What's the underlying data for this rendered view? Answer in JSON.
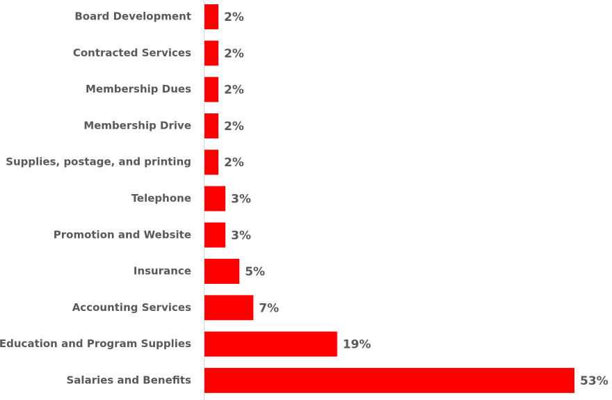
{
  "chart_data": {
    "type": "hbar",
    "categories": [
      "Board Development",
      "Contracted Services",
      "Membership Dues",
      "Membership Drive",
      "Supplies, postage, and printing",
      "Telephone",
      "Promotion and Website",
      "Insurance",
      "Accounting Services",
      "Education and Program Supplies",
      "Salaries and Benefits"
    ],
    "values": [
      2,
      2,
      2,
      2,
      2,
      3,
      3,
      5,
      7,
      19,
      53
    ],
    "value_labels": [
      "2%",
      "2%",
      "2%",
      "2%",
      "2%",
      "3%",
      "3%",
      "5%",
      "7%",
      "19%",
      "53%"
    ],
    "color": "#ff0000"
  }
}
